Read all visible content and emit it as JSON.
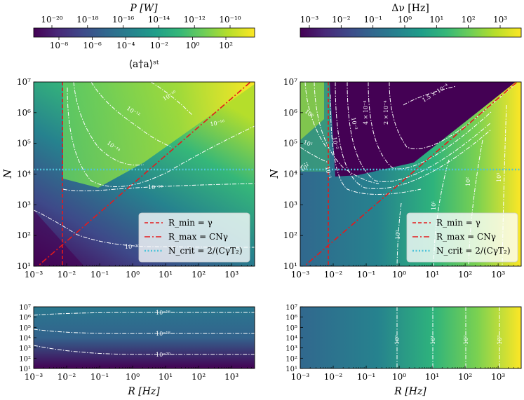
{
  "colors": {
    "viridis": [
      "#440154",
      "#482878",
      "#3e4989",
      "#31688e",
      "#26828e",
      "#1f9e89",
      "#35b779",
      "#6ece58",
      "#b5de2b",
      "#fde725"
    ],
    "r_min_line": "#e41a1c",
    "r_max_line": "#e41a1c",
    "n_crit_line": "#4fc3d9",
    "contour": "#ffffff"
  },
  "x_ticks": [
    "10⁻³",
    "10⁻²",
    "10⁻¹",
    "10⁰",
    "10¹",
    "10²",
    "10³"
  ],
  "y_ticks": [
    "10¹",
    "10²",
    "10³",
    "10⁴",
    "10⁵",
    "10⁶",
    "10⁷"
  ],
  "left_colorbar": {
    "top_label": "P [W]",
    "top_ticks": [
      "10⁻²⁰",
      "10⁻¹⁸",
      "10⁻¹⁶",
      "10⁻¹⁴",
      "10⁻¹²",
      "10⁻¹⁰"
    ],
    "bottom_ticks": [
      "10⁻⁸",
      "10⁻⁶",
      "10⁻⁴",
      "10⁻²",
      "10⁰",
      "10²"
    ],
    "bottom_label": "⟨a†a⟩ˢᵗ"
  },
  "right_colorbar": {
    "top_label": "Δν [Hz]",
    "ticks": [
      "10⁻³",
      "10⁻²",
      "10⁻¹",
      "10⁰",
      "10¹",
      "10²",
      "10³"
    ]
  },
  "legend": {
    "r_min": "R_min = γ",
    "r_max": "R_max = CNγ",
    "n_crit": "N_crit = 2/(CγT₂)"
  },
  "axis_labels": {
    "x": "R [Hz]",
    "y": "N"
  },
  "contour_labels": {
    "top_left": [
      "10⁻¹⁰",
      "10⁻¹²",
      "10⁻¹⁴",
      "10⁻¹⁶",
      "10⁻¹⁸",
      "10⁻²⁰"
    ],
    "top_right": [
      "1.5 × 10⁻⁴",
      "2 × 10⁻⁴",
      "4 × 10⁻⁴",
      "10⁻³",
      "10⁻²",
      "10⁻¹",
      "10⁰",
      "10¹",
      "10²",
      "10³",
      "10⁰",
      "10¹",
      "10²"
    ],
    "bottom_left": [
      "10⁻¹⁶",
      "10⁻¹⁸",
      "10⁻²⁰"
    ],
    "bottom_right": [
      "10⁰",
      "10¹",
      "10²",
      "10³"
    ]
  },
  "chart_data": [
    {
      "type": "heatmap",
      "panel": "top-left",
      "xlabel": "",
      "ylabel": "N",
      "xscale": "log",
      "yscale": "log",
      "xlim": [
        0.001,
        5000
      ],
      "ylim": [
        10,
        10000000
      ],
      "colorbar": "⟨a†a⟩ˢᵗ / P [W]",
      "lines": [
        {
          "name": "R_min = γ",
          "style": "dashed",
          "x": [
            0.008,
            0.008
          ],
          "y": [
            10,
            10000000
          ]
        },
        {
          "name": "R_max = CNγ",
          "style": "dash-dot",
          "x": [
            0.001,
            5000
          ],
          "y": [
            10,
            10000000
          ]
        },
        {
          "name": "N_crit = 2/(CγT₂)",
          "style": "dotted",
          "x": [
            0.001,
            5000
          ],
          "y": [
            14000,
            14000
          ]
        }
      ],
      "contour_levels": [
        "10⁻¹⁰",
        "10⁻¹²",
        "10⁻¹⁴",
        "10⁻¹⁶",
        "10⁻¹⁸",
        "10⁻²⁰"
      ],
      "legend_position": "lower-right"
    },
    {
      "type": "heatmap",
      "panel": "top-right",
      "xlabel": "",
      "ylabel": "N",
      "xscale": "log",
      "yscale": "log",
      "xlim": [
        0.001,
        5000
      ],
      "ylim": [
        10,
        10000000
      ],
      "colorbar": "Δν [Hz]",
      "lines": [
        {
          "name": "R_min = γ",
          "style": "dashed",
          "x": [
            0.008,
            0.008
          ],
          "y": [
            10,
            10000000
          ]
        },
        {
          "name": "R_max = CNγ",
          "style": "dash-dot",
          "x": [
            0.001,
            5000
          ],
          "y": [
            10,
            10000000
          ]
        },
        {
          "name": "N_crit = 2/(CγT₂)",
          "style": "dotted",
          "x": [
            0.001,
            5000
          ],
          "y": [
            14000,
            14000
          ]
        }
      ],
      "contour_levels": [
        "1.5 × 10⁻⁴",
        "2 × 10⁻⁴",
        "4 × 10⁻⁴",
        "10⁻³",
        "10⁻²",
        "10⁻¹",
        "10⁰",
        "10¹",
        "10²",
        "10³"
      ],
      "legend_position": "lower-right"
    },
    {
      "type": "heatmap",
      "panel": "bottom-left",
      "xlabel": "R [Hz]",
      "ylabel": "",
      "xscale": "log",
      "yscale": "log",
      "xlim": [
        0.001,
        5000
      ],
      "ylim": [
        10,
        10000000
      ],
      "contour_levels": [
        "10⁻¹⁶",
        "10⁻¹⁸",
        "10⁻²⁰"
      ]
    },
    {
      "type": "heatmap",
      "panel": "bottom-right",
      "xlabel": "R [Hz]",
      "ylabel": "",
      "xscale": "log",
      "yscale": "log",
      "xlim": [
        0.001,
        5000
      ],
      "ylim": [
        10,
        10000000
      ],
      "contour_levels": [
        "10⁰",
        "10¹",
        "10²",
        "10³"
      ]
    }
  ]
}
